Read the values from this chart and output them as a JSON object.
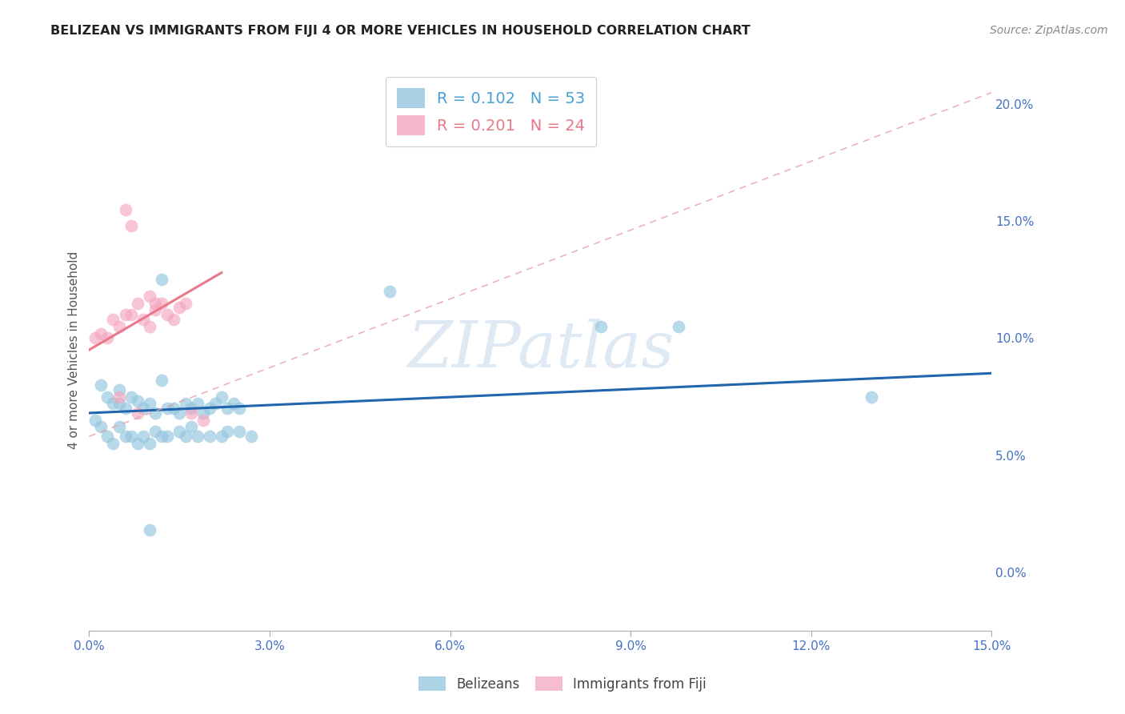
{
  "title": "BELIZEAN VS IMMIGRANTS FROM FIJI 4 OR MORE VEHICLES IN HOUSEHOLD CORRELATION CHART",
  "source": "Source: ZipAtlas.com",
  "ylabel": "4 or more Vehicles in Household",
  "xlim": [
    0.0,
    0.15
  ],
  "ylim": [
    -0.025,
    0.215
  ],
  "yticks_right": [
    0.0,
    0.05,
    0.1,
    0.15,
    0.2
  ],
  "ytick_labels_right": [
    "0.0%",
    "5.0%",
    "10.0%",
    "15.0%",
    "20.0%"
  ],
  "xtick_vals": [
    0.0,
    0.03,
    0.06,
    0.09,
    0.12,
    0.15
  ],
  "xtick_labels": [
    "0.0%",
    "3.0%",
    "6.0%",
    "9.0%",
    "12.0%",
    "15.0%"
  ],
  "legend_labels_bottom": [
    "Belizeans",
    "Immigrants from Fiji"
  ],
  "belizean_color": "#92c5de",
  "fiji_color": "#f4a6c0",
  "belizean_line_color": "#2166ac",
  "fiji_line_color": "#e8788a",
  "fiji_dash_color": "#e8a0a8",
  "watermark": "ZIPatlas",
  "belizean_points": [
    [
      0.002,
      0.08
    ],
    [
      0.003,
      0.075
    ],
    [
      0.004,
      0.072
    ],
    [
      0.005,
      0.078
    ],
    [
      0.005,
      0.072
    ],
    [
      0.006,
      0.07
    ],
    [
      0.007,
      0.075
    ],
    [
      0.008,
      0.073
    ],
    [
      0.009,
      0.07
    ],
    [
      0.01,
      0.072
    ],
    [
      0.011,
      0.068
    ],
    [
      0.012,
      0.082
    ],
    [
      0.013,
      0.07
    ],
    [
      0.014,
      0.07
    ],
    [
      0.015,
      0.068
    ],
    [
      0.016,
      0.072
    ],
    [
      0.017,
      0.07
    ],
    [
      0.018,
      0.072
    ],
    [
      0.019,
      0.068
    ],
    [
      0.02,
      0.07
    ],
    [
      0.021,
      0.072
    ],
    [
      0.022,
      0.075
    ],
    [
      0.023,
      0.07
    ],
    [
      0.024,
      0.072
    ],
    [
      0.025,
      0.07
    ],
    [
      0.001,
      0.065
    ],
    [
      0.002,
      0.062
    ],
    [
      0.003,
      0.058
    ],
    [
      0.004,
      0.055
    ],
    [
      0.005,
      0.062
    ],
    [
      0.006,
      0.058
    ],
    [
      0.007,
      0.058
    ],
    [
      0.008,
      0.055
    ],
    [
      0.009,
      0.058
    ],
    [
      0.01,
      0.055
    ],
    [
      0.011,
      0.06
    ],
    [
      0.012,
      0.058
    ],
    [
      0.013,
      0.058
    ],
    [
      0.015,
      0.06
    ],
    [
      0.016,
      0.058
    ],
    [
      0.017,
      0.062
    ],
    [
      0.018,
      0.058
    ],
    [
      0.02,
      0.058
    ],
    [
      0.022,
      0.058
    ],
    [
      0.023,
      0.06
    ],
    [
      0.025,
      0.06
    ],
    [
      0.027,
      0.058
    ],
    [
      0.012,
      0.125
    ],
    [
      0.05,
      0.12
    ],
    [
      0.085,
      0.105
    ],
    [
      0.098,
      0.105
    ],
    [
      0.13,
      0.075
    ],
    [
      0.01,
      0.018
    ]
  ],
  "fiji_points": [
    [
      0.001,
      0.1
    ],
    [
      0.002,
      0.102
    ],
    [
      0.003,
      0.1
    ],
    [
      0.004,
      0.108
    ],
    [
      0.005,
      0.105
    ],
    [
      0.006,
      0.11
    ],
    [
      0.007,
      0.11
    ],
    [
      0.008,
      0.115
    ],
    [
      0.009,
      0.108
    ],
    [
      0.01,
      0.105
    ],
    [
      0.011,
      0.112
    ],
    [
      0.012,
      0.115
    ],
    [
      0.013,
      0.11
    ],
    [
      0.014,
      0.108
    ],
    [
      0.015,
      0.113
    ],
    [
      0.016,
      0.115
    ],
    [
      0.006,
      0.155
    ],
    [
      0.007,
      0.148
    ],
    [
      0.01,
      0.118
    ],
    [
      0.011,
      0.115
    ],
    [
      0.005,
      0.075
    ],
    [
      0.008,
      0.068
    ],
    [
      0.017,
      0.068
    ],
    [
      0.019,
      0.065
    ]
  ],
  "belizean_line": {
    "x0": 0.0,
    "y0": 0.068,
    "x1": 0.15,
    "y1": 0.085
  },
  "fiji_line": {
    "x0": 0.0,
    "y0": 0.095,
    "x1": 0.022,
    "y1": 0.128
  },
  "fiji_dashed_line": {
    "x0": 0.0,
    "y0": 0.058,
    "x1": 0.15,
    "y1": 0.205
  },
  "background_color": "#ffffff",
  "grid_color": "#cccccc",
  "title_color": "#222222",
  "tick_color": "#4472c4",
  "right_axis_color": "#4472c4"
}
